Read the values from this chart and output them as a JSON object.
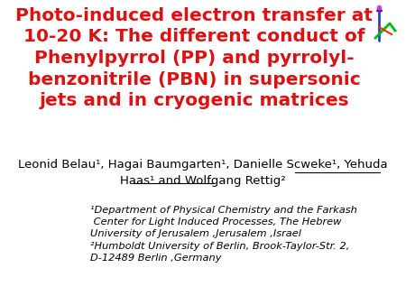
{
  "title_line1": "Photo-induced electron transfer at",
  "title_line2": "10-20 K: The different conduct of",
  "title_line3": "Phenylpyrrol (PP) and pyrrolyl-",
  "title_line4": "benzonitrile (PBN) in supersonic",
  "title_line5": "jets and in cryogenic matrices",
  "title_color": "#dd1111",
  "title_fontsize": 14.5,
  "authors_line1": "Leonid Belau¹, Hagai Baumgarten¹, Danielle Scweke¹, Yehuda",
  "authors_line2": "Haas¹ and Wolfgang Rettig²",
  "authors_fontsize": 9.5,
  "affil1_line1": "¹Department of Physical Chemistry and the Farkash",
  "affil1_line2": " Center for Light Induced Processes, The Hebrew",
  "affil1_line3": "University of Jerusalem ,Jerusalem ,Israel",
  "affil2_line1": "²Humboldt University of Berlin, Brook-Taylor-Str. 2,",
  "affil2_line2": "D-12489 Berlin ,Germany",
  "affil_fontsize": 8.2,
  "background_color": "#ffffff"
}
